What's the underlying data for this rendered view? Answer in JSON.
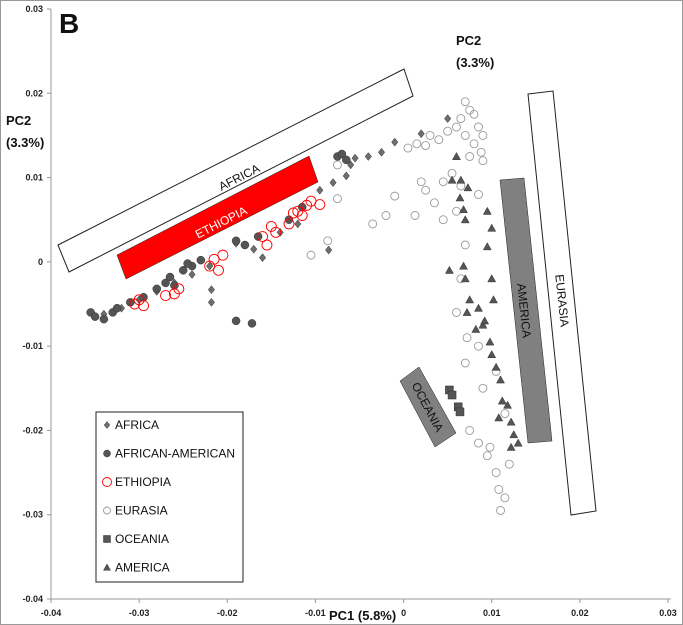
{
  "chart_data": {
    "type": "scatter",
    "panel_label": "B",
    "xlabel": "PC1 (5.8%)",
    "ylabel_line1": "PC2",
    "ylabel_line2": "(3.3%)",
    "xlim": [
      -0.04,
      0.03
    ],
    "ylim": [
      -0.04,
      0.03
    ],
    "x_ticks": [
      "-0.04",
      "-0.03",
      "-0.02",
      "-0.01",
      "0",
      "0.01",
      "0.02",
      "0.03"
    ],
    "y_ticks": [
      "0.03",
      "0.02",
      "0.01",
      "0",
      "-0.01",
      "-0.02",
      "-0.03",
      "-0.04"
    ],
    "grid": false,
    "legend_position": "bottom-left",
    "annotations": {
      "africa": "AFRICA",
      "ethiopia": "ETHIOPIA",
      "america": "AMERICA",
      "eurasia": "EURASIA",
      "oceania": "OCEANIA"
    },
    "series": [
      {
        "name": "AFRICA",
        "marker": "diamond",
        "color": "#6e6e6e",
        "fill": true,
        "points": [
          [
            -0.034,
            -0.0062
          ],
          [
            -0.032,
            -0.0055
          ],
          [
            -0.03,
            -0.0045
          ],
          [
            -0.028,
            -0.0035
          ],
          [
            -0.026,
            -0.0025
          ],
          [
            -0.024,
            -0.0015
          ],
          [
            -0.022,
            -0.0005
          ],
          [
            -0.0218,
            -0.0033
          ],
          [
            -0.0218,
            -0.0048
          ],
          [
            -0.019,
            0.0022
          ],
          [
            -0.017,
            0.0015
          ],
          [
            -0.016,
            0.0005
          ],
          [
            -0.0085,
            0.0014
          ],
          [
            -0.0095,
            0.0085
          ],
          [
            -0.008,
            0.0094
          ],
          [
            -0.0065,
            0.0102
          ],
          [
            -0.006,
            0.0115
          ],
          [
            -0.0055,
            0.0123
          ],
          [
            -0.004,
            0.0125
          ],
          [
            -0.0025,
            0.013
          ],
          [
            -0.001,
            0.0142
          ],
          [
            0.002,
            0.0152
          ],
          [
            0.005,
            0.017
          ],
          [
            -0.012,
            0.0045
          ],
          [
            -0.014,
            0.0035
          ]
        ]
      },
      {
        "name": "AFRICAN-AMERICAN",
        "marker": "circle",
        "color": "#555555",
        "fill": true,
        "points": [
          [
            -0.0355,
            -0.006
          ],
          [
            -0.035,
            -0.0065
          ],
          [
            -0.034,
            -0.0068
          ],
          [
            -0.033,
            -0.006
          ],
          [
            -0.0325,
            -0.0055
          ],
          [
            -0.031,
            -0.0048
          ],
          [
            -0.0295,
            -0.0042
          ],
          [
            -0.028,
            -0.0032
          ],
          [
            -0.027,
            -0.0025
          ],
          [
            -0.0265,
            -0.0018
          ],
          [
            -0.025,
            -0.001
          ],
          [
            -0.024,
            -0.0005
          ],
          [
            -0.023,
            0.0002
          ],
          [
            -0.0245,
            -0.0002
          ],
          [
            -0.026,
            -0.0028
          ],
          [
            -0.019,
            0.0025
          ],
          [
            -0.018,
            0.002
          ],
          [
            -0.0165,
            0.003
          ],
          [
            -0.019,
            -0.007
          ],
          [
            -0.0172,
            -0.0073
          ],
          [
            -0.0075,
            0.0125
          ],
          [
            -0.007,
            0.0128
          ],
          [
            -0.0065,
            0.0121
          ],
          [
            -0.0115,
            0.0065
          ],
          [
            -0.013,
            0.005
          ]
        ]
      },
      {
        "name": "ETHIOPIA",
        "marker": "open-circle",
        "color": "#ff0000",
        "fill": false,
        "points": [
          [
            -0.03,
            -0.0045
          ],
          [
            -0.0295,
            -0.0052
          ],
          [
            -0.0305,
            -0.005
          ],
          [
            -0.027,
            -0.004
          ],
          [
            -0.026,
            -0.0038
          ],
          [
            -0.0255,
            -0.0032
          ],
          [
            -0.022,
            -0.0005
          ],
          [
            -0.0215,
            0.0003
          ],
          [
            -0.021,
            -0.001
          ],
          [
            -0.0205,
            0.0008
          ],
          [
            -0.016,
            0.003
          ],
          [
            -0.015,
            0.0042
          ],
          [
            -0.0145,
            0.0035
          ],
          [
            -0.0155,
            0.002
          ],
          [
            -0.0125,
            0.0058
          ],
          [
            -0.012,
            0.006
          ],
          [
            -0.011,
            0.0067
          ],
          [
            -0.0105,
            0.0072
          ],
          [
            -0.0115,
            0.0055
          ],
          [
            -0.013,
            0.0045
          ],
          [
            -0.0095,
            0.0068
          ]
        ]
      },
      {
        "name": "EURASIA",
        "marker": "open-circle",
        "color": "#9a9a9a",
        "fill": false,
        "points": [
          [
            0.007,
            0.019
          ],
          [
            0.0075,
            0.018
          ],
          [
            0.008,
            0.0175
          ],
          [
            0.0085,
            0.016
          ],
          [
            0.009,
            0.015
          ],
          [
            0.0065,
            0.017
          ],
          [
            0.006,
            0.016
          ],
          [
            0.007,
            0.015
          ],
          [
            0.008,
            0.014
          ],
          [
            0.0088,
            0.013
          ],
          [
            0.005,
            0.0155
          ],
          [
            0.004,
            0.0145
          ],
          [
            0.003,
            0.015
          ],
          [
            0.0025,
            0.0138
          ],
          [
            0.0015,
            0.014
          ],
          [
            0.0005,
            0.0135
          ],
          [
            0.009,
            0.012
          ],
          [
            0.0075,
            0.0125
          ],
          [
            0.0055,
            0.0105
          ],
          [
            0.0045,
            0.0095
          ],
          [
            0.0065,
            0.009
          ],
          [
            0.0085,
            0.008
          ],
          [
            0.0025,
            0.0085
          ],
          [
            0.002,
            0.0095
          ],
          [
            -0.001,
            0.0078
          ],
          [
            -0.002,
            0.0055
          ],
          [
            -0.0035,
            0.0045
          ],
          [
            0.0013,
            0.0055
          ],
          [
            0.0035,
            0.007
          ],
          [
            0.0045,
            0.005
          ],
          [
            -0.0075,
            0.0075
          ],
          [
            -0.0086,
            0.0025
          ],
          [
            -0.0105,
            0.0008
          ],
          [
            -0.0075,
            0.0115
          ],
          [
            0.006,
            0.006
          ],
          [
            0.007,
            0.002
          ],
          [
            0.0065,
            -0.002
          ],
          [
            0.006,
            -0.006
          ],
          [
            0.0072,
            -0.009
          ],
          [
            0.007,
            -0.012
          ],
          [
            0.0085,
            -0.01
          ],
          [
            0.009,
            -0.015
          ],
          [
            0.0075,
            -0.02
          ],
          [
            0.0085,
            -0.0215
          ],
          [
            0.0095,
            -0.023
          ],
          [
            0.0105,
            -0.025
          ],
          [
            0.0108,
            -0.027
          ],
          [
            0.011,
            -0.0295
          ],
          [
            0.0115,
            -0.028
          ],
          [
            0.0098,
            -0.022
          ],
          [
            0.0115,
            -0.018
          ],
          [
            0.012,
            -0.024
          ],
          [
            0.0105,
            -0.013
          ]
        ]
      },
      {
        "name": "OCEANIA",
        "marker": "square",
        "color": "#555555",
        "fill": true,
        "points": [
          [
            0.0052,
            -0.0152
          ],
          [
            0.0055,
            -0.0158
          ],
          [
            0.0062,
            -0.0172
          ],
          [
            0.0064,
            -0.0178
          ]
        ]
      },
      {
        "name": "AMERICA",
        "marker": "triangle",
        "color": "#555555",
        "fill": true,
        "points": [
          [
            0.006,
            0.0125
          ],
          [
            0.0055,
            0.0097
          ],
          [
            0.0065,
            0.0097
          ],
          [
            0.0064,
            0.0076
          ],
          [
            0.0073,
            0.0088
          ],
          [
            0.0068,
            0.0062
          ],
          [
            0.007,
            0.005
          ],
          [
            0.0095,
            0.006
          ],
          [
            0.01,
            0.004
          ],
          [
            0.0095,
            0.0018
          ],
          [
            0.0052,
            -0.001
          ],
          [
            0.0068,
            -0.0005
          ],
          [
            0.007,
            -0.002
          ],
          [
            0.01,
            -0.002
          ],
          [
            0.0102,
            -0.0045
          ],
          [
            0.0075,
            -0.0045
          ],
          [
            0.0072,
            -0.006
          ],
          [
            0.0085,
            -0.0055
          ],
          [
            0.0082,
            -0.008
          ],
          [
            0.009,
            -0.0075
          ],
          [
            0.0098,
            -0.0095
          ],
          [
            0.01,
            -0.011
          ],
          [
            0.0105,
            -0.0125
          ],
          [
            0.011,
            -0.014
          ],
          [
            0.0112,
            -0.0165
          ],
          [
            0.0118,
            -0.017
          ],
          [
            0.0108,
            -0.0185
          ],
          [
            0.0122,
            -0.019
          ],
          [
            0.0125,
            -0.0205
          ],
          [
            0.013,
            -0.0215
          ],
          [
            0.0122,
            -0.022
          ],
          [
            0.0092,
            -0.007
          ]
        ]
      }
    ]
  }
}
